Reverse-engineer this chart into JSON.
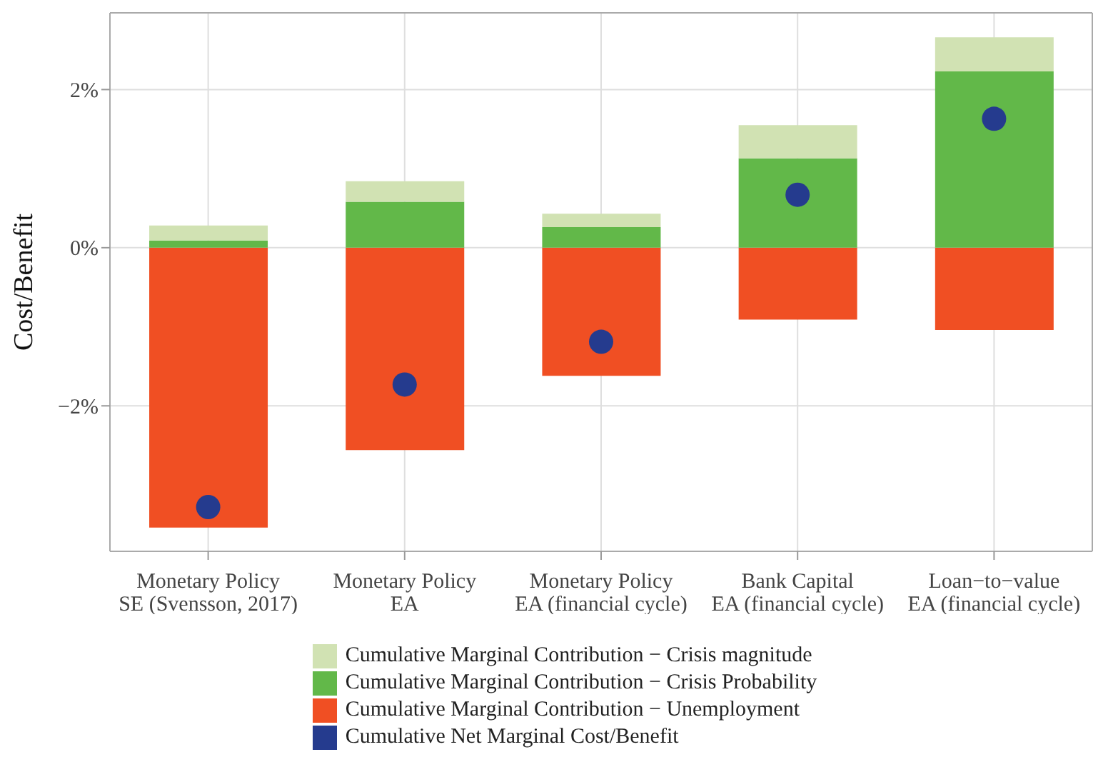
{
  "chart_data": {
    "type": "bar",
    "stacked": true,
    "ylabel": "Cost/Benefit",
    "categories": [
      "Monetary Policy\nSE (Svensson, 2017)",
      "Monetary Policy\nEA",
      "Monetary Policy\nEA (financial cycle)",
      "Bank Capital\nEA (financial cycle)",
      "Loan−to−value\nEA (financial cycle)"
    ],
    "series": [
      {
        "name": "Cumulative Marginal Contribution − Unemployment",
        "color": "#f04f23",
        "values": [
          -3.54,
          -2.56,
          -1.62,
          -0.91,
          -1.04
        ]
      },
      {
        "name": "Cumulative Marginal Contribution − Crisis Probability",
        "color": "#62b849",
        "values": [
          0.09,
          0.58,
          0.26,
          1.13,
          2.23
        ]
      },
      {
        "name": "Cumulative Marginal Contribution − Crisis magnitude",
        "color": "#d1e2b3",
        "values": [
          0.19,
          0.26,
          0.17,
          0.42,
          0.43
        ]
      },
      {
        "name": "Cumulative Net Marginal Cost/Benefit",
        "type": "scatter",
        "color": "#253b8e",
        "marker": "circle",
        "values": [
          -3.28,
          -1.73,
          -1.19,
          0.67,
          1.63
        ]
      }
    ],
    "ylim": [
      -3.84,
      2.97
    ],
    "yticks": [
      {
        "value": -2,
        "label": "−2%"
      },
      {
        "value": 0,
        "label": "0%"
      },
      {
        "value": 2,
        "label": "2%"
      }
    ],
    "grid": true,
    "legend": "bottom"
  }
}
